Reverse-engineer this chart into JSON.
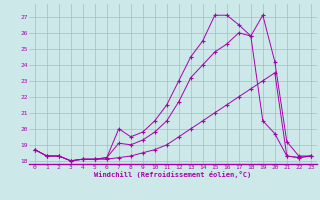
{
  "xlabel": "Windchill (Refroidissement éolien,°C)",
  "background_color": "#cce8e8",
  "grid_color": "#a0c0c0",
  "line_color": "#aa00aa",
  "xlim": [
    -0.5,
    23.5
  ],
  "ylim": [
    17.8,
    27.8
  ],
  "yticks": [
    18,
    19,
    20,
    21,
    22,
    23,
    24,
    25,
    26,
    27
  ],
  "xticks": [
    0,
    1,
    2,
    3,
    4,
    5,
    6,
    7,
    8,
    9,
    10,
    11,
    12,
    13,
    14,
    15,
    16,
    17,
    18,
    19,
    20,
    21,
    22,
    23
  ],
  "line1_x": [
    0,
    1,
    2,
    3,
    4,
    5,
    6,
    7,
    8,
    9,
    10,
    11,
    12,
    13,
    14,
    15,
    16,
    17,
    18,
    19,
    20,
    21,
    22,
    23
  ],
  "line1_y": [
    18.7,
    18.3,
    18.3,
    18.0,
    18.1,
    18.1,
    18.1,
    18.2,
    18.3,
    18.5,
    18.7,
    19.0,
    19.5,
    20.0,
    20.5,
    21.0,
    21.5,
    22.0,
    22.5,
    23.0,
    23.5,
    18.3,
    18.2,
    18.3
  ],
  "line2_x": [
    0,
    1,
    2,
    3,
    4,
    5,
    6,
    7,
    8,
    9,
    10,
    11,
    12,
    13,
    14,
    15,
    16,
    17,
    18,
    19,
    20,
    21,
    22,
    23
  ],
  "line2_y": [
    18.7,
    18.3,
    18.3,
    18.0,
    18.1,
    18.1,
    18.2,
    19.1,
    19.0,
    19.3,
    19.8,
    20.5,
    21.7,
    23.2,
    24.0,
    24.8,
    25.3,
    26.0,
    25.8,
    20.5,
    19.7,
    18.3,
    18.2,
    18.3
  ],
  "line3_x": [
    0,
    1,
    2,
    3,
    4,
    5,
    6,
    7,
    8,
    9,
    10,
    11,
    12,
    13,
    14,
    15,
    16,
    17,
    18,
    19,
    20,
    21,
    22,
    23
  ],
  "line3_y": [
    18.7,
    18.3,
    18.3,
    18.0,
    18.1,
    18.1,
    18.2,
    20.0,
    19.5,
    19.8,
    20.5,
    21.5,
    23.0,
    24.5,
    25.5,
    27.1,
    27.1,
    26.5,
    25.8,
    27.1,
    24.2,
    19.2,
    18.3,
    18.3
  ]
}
